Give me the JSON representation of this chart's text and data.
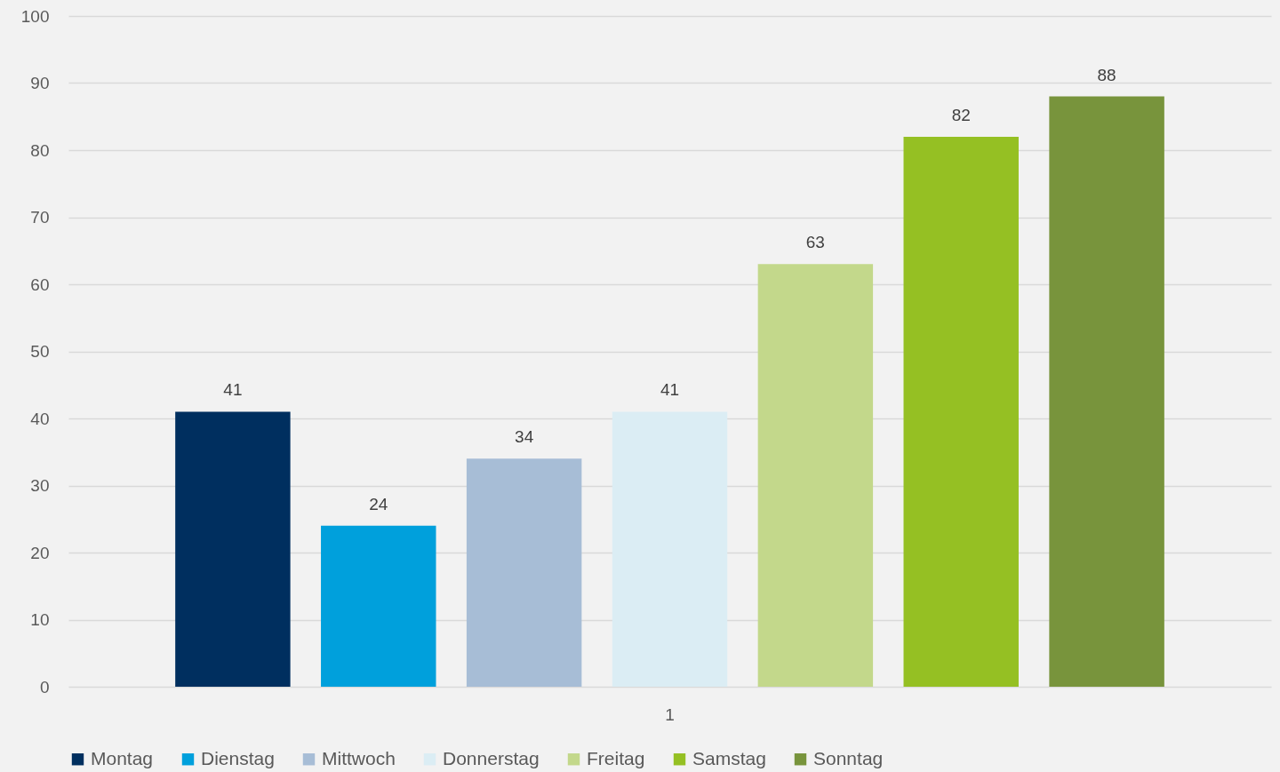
{
  "chart_data": {
    "type": "bar",
    "categories": [
      "1"
    ],
    "series": [
      {
        "name": "Montag",
        "color": "#002f5f",
        "values": [
          41
        ]
      },
      {
        "name": "Dienstag",
        "color": "#00a0dc",
        "values": [
          24
        ]
      },
      {
        "name": "Mittwoch",
        "color": "#a7bdd6",
        "values": [
          34
        ]
      },
      {
        "name": "Donnerstag",
        "color": "#dbedf4",
        "values": [
          41
        ]
      },
      {
        "name": "Freitag",
        "color": "#c3d88b",
        "values": [
          63
        ]
      },
      {
        "name": "Samstag",
        "color": "#95c023",
        "values": [
          82
        ]
      },
      {
        "name": "Sonntag",
        "color": "#78943c",
        "values": [
          88
        ]
      }
    ],
    "ylim": [
      0,
      100
    ],
    "yticks": [
      0,
      10,
      20,
      30,
      40,
      50,
      60,
      70,
      80,
      90,
      100
    ],
    "grid": "y",
    "legend": "bottom",
    "data_labels": true
  }
}
